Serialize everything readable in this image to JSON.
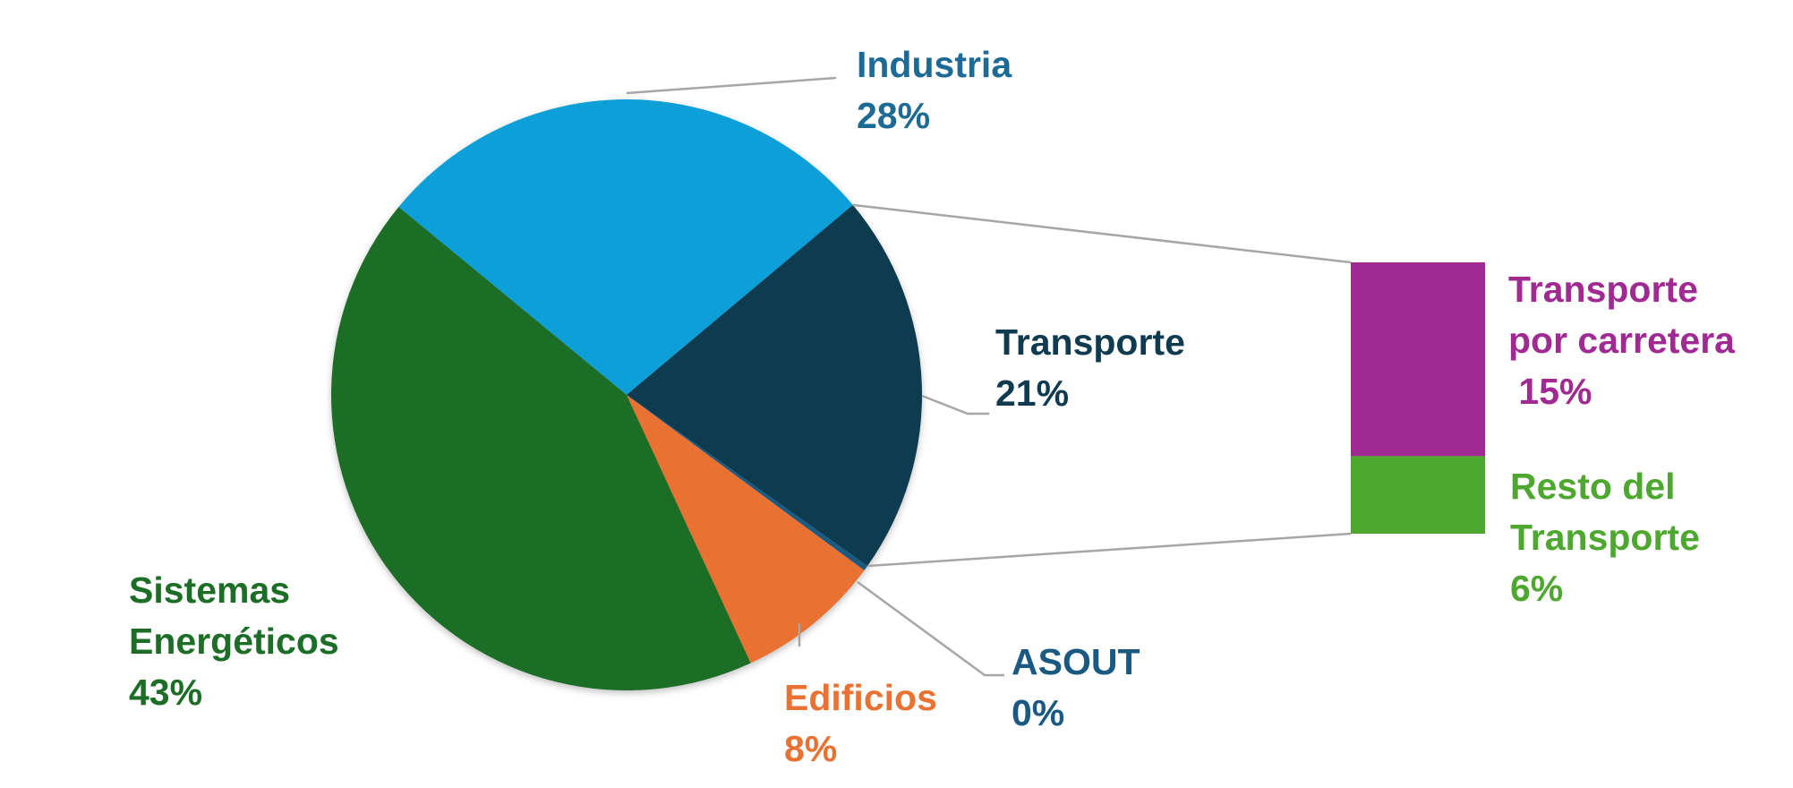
{
  "chart_data": {
    "type": "pie",
    "subtype": "bar-of-pie",
    "title": "",
    "series": [
      {
        "name": "Industria",
        "value": 28,
        "label": "28%",
        "color": "#119FD8",
        "label_color": "#1C6A95"
      },
      {
        "name": "Transporte",
        "value": 21,
        "label": "21%",
        "color": "#0F3A50",
        "label_color": "#0F3A50"
      },
      {
        "name": "ASOUT",
        "value": 0.3,
        "label": "0%",
        "color": "#1A5A82",
        "label_color": "#1A5A82"
      },
      {
        "name": "Edificios",
        "value": 8,
        "label": "8%",
        "color": "#E97233",
        "label_color": "#E97233"
      },
      {
        "name": "Sistemas Energéticos",
        "value": 43,
        "label": "43%",
        "color": "#1C6D26",
        "label_color": "#1C6D26"
      }
    ],
    "breakdown_of": "Transporte",
    "breakdown": [
      {
        "name": "Transporte por carretera",
        "value": 15,
        "label": "15%",
        "color": "#A02A92",
        "label_color": "#A02A92"
      },
      {
        "name": "Resto del Transporte",
        "value": 6,
        "label": "6%",
        "color": "#4EA72E",
        "label_color": "#4EA72E"
      }
    ],
    "legend": "none",
    "label_lines": {
      "Industria": [
        "Industria",
        "28%"
      ],
      "Transporte": [
        "Transporte",
        "21%"
      ],
      "ASOUT": [
        "ASOUT",
        "0%"
      ],
      "Edificios": [
        "Edificios",
        "8%"
      ],
      "Sistemas Energéticos": [
        "Sistemas",
        "Energéticos",
        "43%"
      ],
      "Transporte por carretera": [
        "Transporte",
        "por carretera",
        " 15%"
      ],
      "Resto del Transporte": [
        "Resto del",
        "Transporte",
        "6%"
      ]
    }
  }
}
